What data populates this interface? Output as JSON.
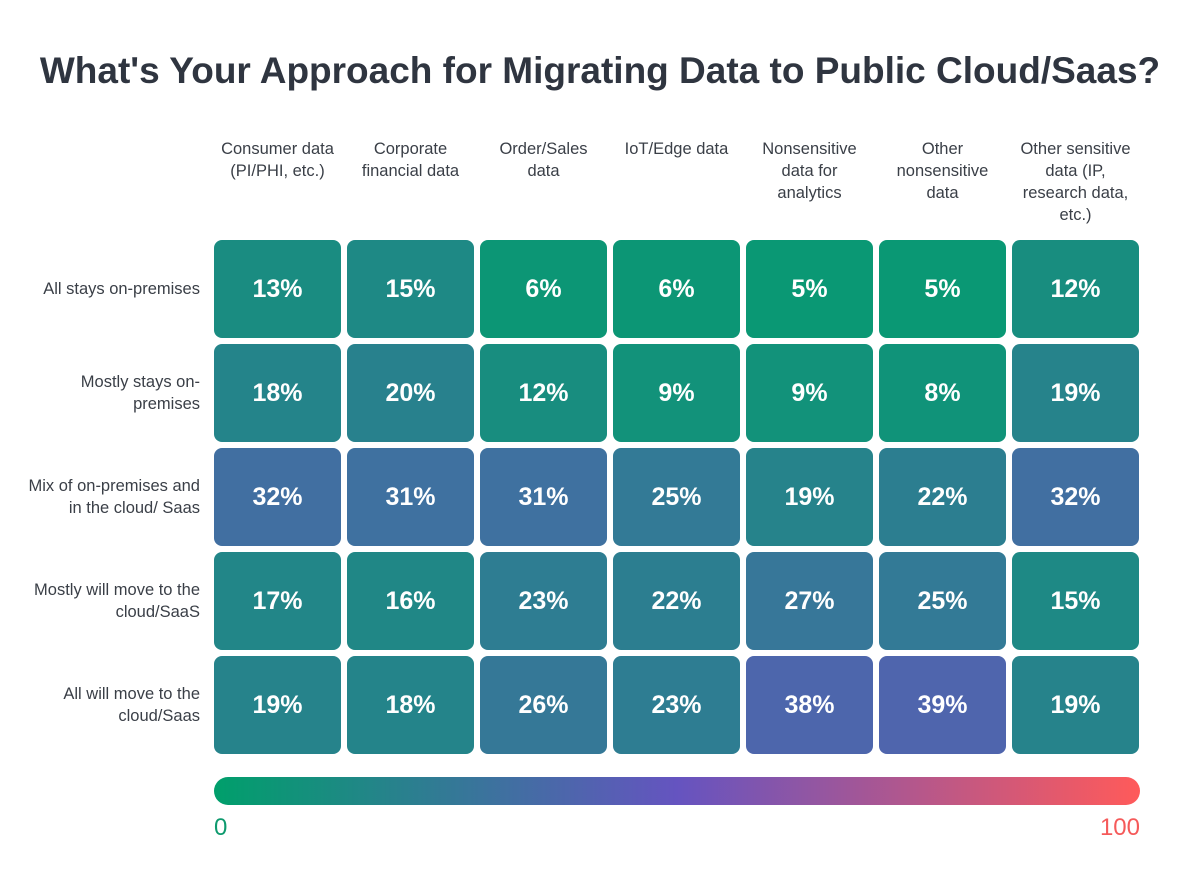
{
  "chart_data": {
    "type": "heatmap",
    "title": "What's Your Approach for Migrating Data to Public Cloud/Saas?",
    "columns": [
      "Consumer data (PI/PHI, etc.)",
      "Corporate financial data",
      "Order/Sales data",
      "IoT/Edge data",
      "Nonsensitive data for analytics",
      "Other nonsensitive data",
      "Other sensitive data (IP, research data, etc.)"
    ],
    "rows": [
      "All stays on-premises",
      "Mostly stays on-premises",
      "Mix of on-premises and in the cloud/ Saas",
      "Mostly will move to the cloud/SaaS",
      "All will move to the cloud/Saas"
    ],
    "values": [
      [
        13,
        15,
        6,
        6,
        5,
        5,
        12
      ],
      [
        18,
        20,
        12,
        9,
        9,
        8,
        19
      ],
      [
        32,
        31,
        31,
        25,
        19,
        22,
        32
      ],
      [
        17,
        16,
        23,
        22,
        27,
        25,
        15
      ],
      [
        19,
        18,
        26,
        23,
        38,
        39,
        19
      ]
    ],
    "unit": "%",
    "color_scale": {
      "min": 0,
      "max": 100,
      "min_label": "0",
      "max_label": "100",
      "colors": [
        "#009f6b",
        "#6554c0",
        "#ff5a5a"
      ]
    }
  }
}
